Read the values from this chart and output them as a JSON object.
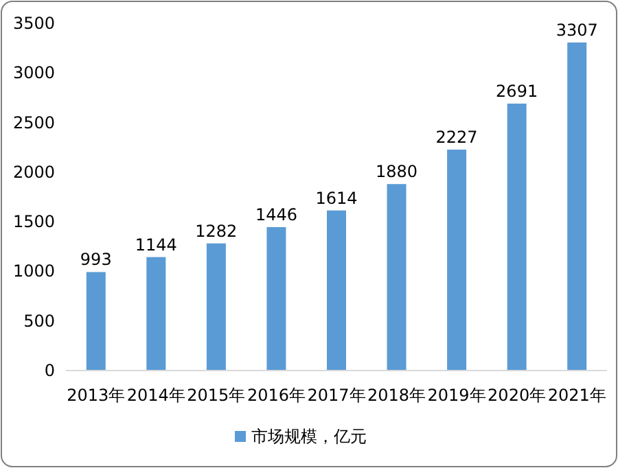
{
  "chart_data": {
    "type": "bar",
    "categories": [
      "2013年",
      "2014年",
      "2015年",
      "2016年",
      "2017年",
      "2018年",
      "2019年",
      "2020年",
      "2021年"
    ],
    "series": [
      {
        "name": "市场规模，亿元",
        "color": "#5b9bd5",
        "values": [
          993,
          1144,
          1282,
          1446,
          1614,
          1880,
          2227,
          2691,
          3307
        ]
      }
    ],
    "ylim": [
      0,
      3500
    ],
    "yticks": [
      0,
      500,
      1000,
      1500,
      2000,
      2500,
      3000,
      3500
    ],
    "data_labels": true,
    "legend": "bottom"
  }
}
